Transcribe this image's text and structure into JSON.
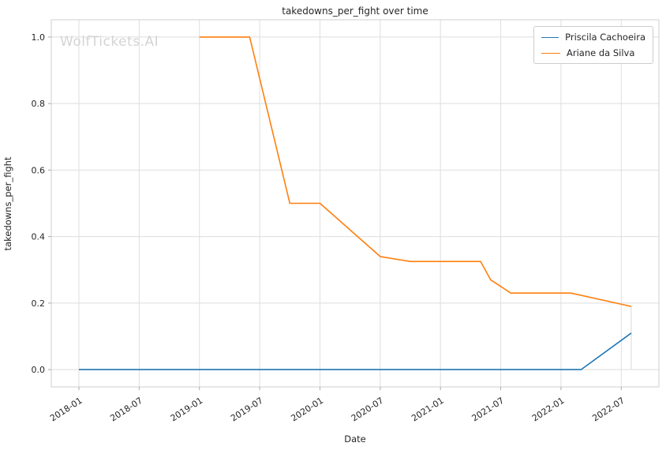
{
  "watermark": "WolfTickets.AI",
  "colors": {
    "background": "#ffffff",
    "grid": "#dedede",
    "spine": "#cfcfcf",
    "tick": "#aaaaaa",
    "text": "#262626",
    "watermark": "#d4d4d4",
    "series_blue": "#1f77b4",
    "series_orange": "#ff7f0e"
  },
  "chart_data": {
    "type": "line",
    "title": "takedowns_per_fight over time",
    "xlabel": "Date",
    "ylabel": "takedowns_per_fight",
    "grid": true,
    "legend_position": "top-right",
    "x_ticks": [
      "2018-01",
      "2018-07",
      "2019-01",
      "2019-07",
      "2020-01",
      "2020-07",
      "2021-01",
      "2021-07",
      "2022-01",
      "2022-07"
    ],
    "y_ticks": [
      0.0,
      0.2,
      0.4,
      0.6,
      0.8,
      1.0
    ],
    "ylim": [
      -0.052,
      1.052
    ],
    "xlim_months": [
      -2.75,
      57.75
    ],
    "series": [
      {
        "name": "Priscila Cachoeira",
        "color": "#1f77b4",
        "points": [
          [
            "2018-01",
            0.0
          ],
          [
            "2018-07",
            0.0
          ],
          [
            "2019-01",
            0.0
          ],
          [
            "2019-07",
            0.0
          ],
          [
            "2020-01",
            0.0
          ],
          [
            "2020-07",
            0.0
          ],
          [
            "2021-01",
            0.0
          ],
          [
            "2021-07",
            0.0
          ],
          [
            "2022-03",
            0.0
          ],
          [
            "2022-08",
            0.11
          ]
        ]
      },
      {
        "name": "Ariane da Silva",
        "color": "#ff7f0e",
        "points": [
          [
            "2019-01",
            1.0
          ],
          [
            "2019-06",
            1.0
          ],
          [
            "2019-10",
            0.5
          ],
          [
            "2020-01",
            0.5
          ],
          [
            "2020-07",
            0.34
          ],
          [
            "2020-10",
            0.325
          ],
          [
            "2021-05",
            0.325
          ],
          [
            "2021-06",
            0.27
          ],
          [
            "2021-08",
            0.23
          ],
          [
            "2022-02",
            0.23
          ],
          [
            "2022-08",
            0.19
          ]
        ]
      }
    ],
    "end_marker": {
      "x": "2022-08",
      "from": 0.0,
      "to": 0.19,
      "color": "#d9d9d9"
    }
  }
}
